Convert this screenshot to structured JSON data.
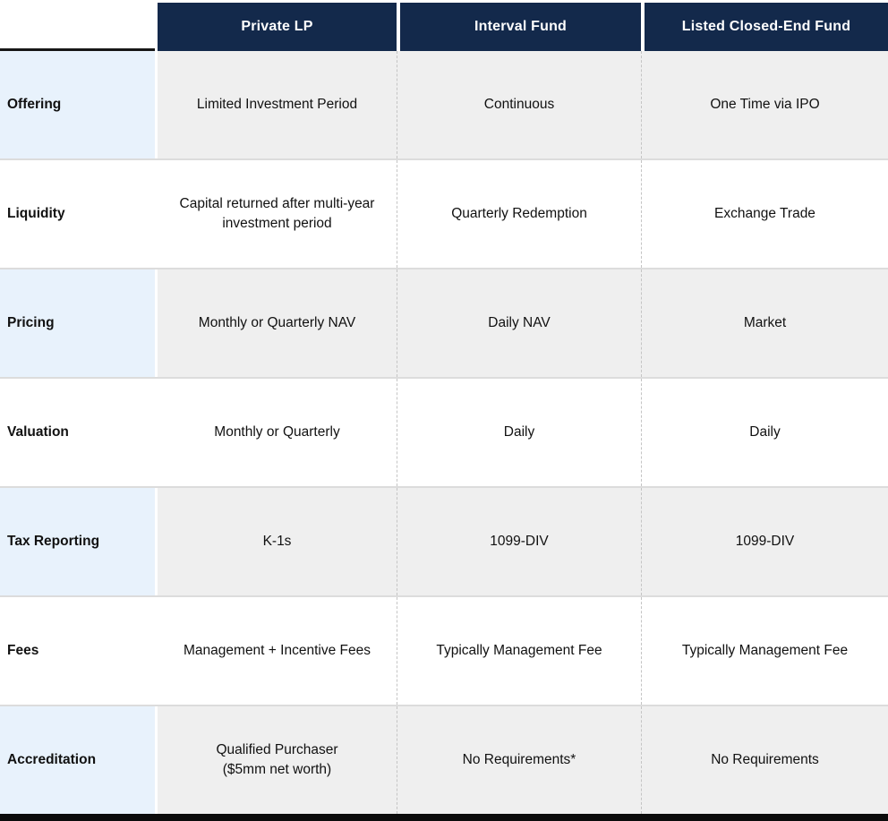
{
  "header": {
    "columns": [
      "Private LP",
      "Interval Fund",
      "Listed Closed-End Fund"
    ]
  },
  "rows": [
    {
      "label": "Offering",
      "private_lp": "Limited Investment Period",
      "interval_fund": "Continuous",
      "listed_cef": "One Time via IPO"
    },
    {
      "label": "Liquidity",
      "private_lp": "Capital returned after multi-year\ninvestment period",
      "interval_fund": "Quarterly Redemption",
      "listed_cef": "Exchange Trade"
    },
    {
      "label": "Pricing",
      "private_lp": "Monthly or Quarterly NAV",
      "interval_fund": "Daily NAV",
      "listed_cef": "Market"
    },
    {
      "label": "Valuation",
      "private_lp": "Monthly or Quarterly",
      "interval_fund": "Daily",
      "listed_cef": "Daily"
    },
    {
      "label": "Tax Reporting",
      "private_lp": "K-1s",
      "interval_fund": "1099-DIV",
      "listed_cef": "1099-DIV"
    },
    {
      "label": "Fees",
      "private_lp": "Management + Incentive Fees",
      "interval_fund": "Typically Management Fee",
      "listed_cef": "Typically Management Fee"
    },
    {
      "label": "Accreditation",
      "private_lp": "Qualified Purchaser\n($5mm net worth)",
      "interval_fund": "No Requirements*",
      "listed_cef": "No Requirements"
    }
  ],
  "colors": {
    "header_bg": "#13294B",
    "label_bg": "#E8F2FC",
    "cell_bg": "#EFEFEF",
    "row_separator": "#DCDCDC",
    "dashed_divider": "#C4C4C4",
    "bottom_bar": "#0B0B0B"
  }
}
